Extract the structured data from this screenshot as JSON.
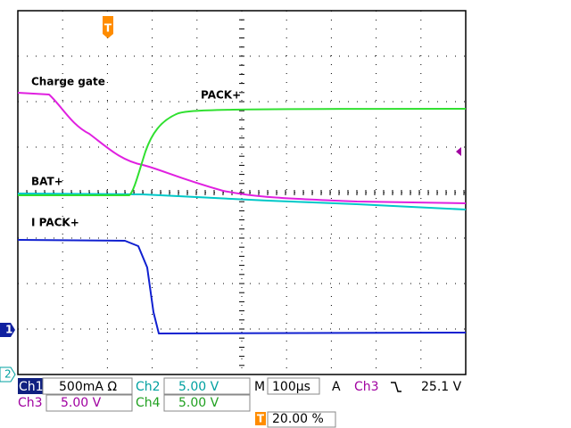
{
  "traces": [
    {
      "label": "Charge gate"
    },
    {
      "label": "PACK+"
    },
    {
      "label": "BAT+"
    },
    {
      "label": "I PACK+"
    }
  ],
  "markers": {
    "ch1": "1",
    "ch2": "2",
    "trigger": "T"
  },
  "status": {
    "ch1": {
      "name": "Ch1",
      "scale": "500mA Ω"
    },
    "ch2": {
      "name": "Ch2",
      "scale": "5.00 V"
    },
    "ch3": {
      "name": "Ch3",
      "scale": "5.00 V"
    },
    "ch4": {
      "name": "Ch4",
      "scale": "5.00 V"
    },
    "timebase": {
      "label": "M",
      "value": "100µs"
    },
    "trigger": {
      "mode": "A",
      "source": "Ch3",
      "level": "25.1 V",
      "position": "20.00 %"
    }
  }
}
